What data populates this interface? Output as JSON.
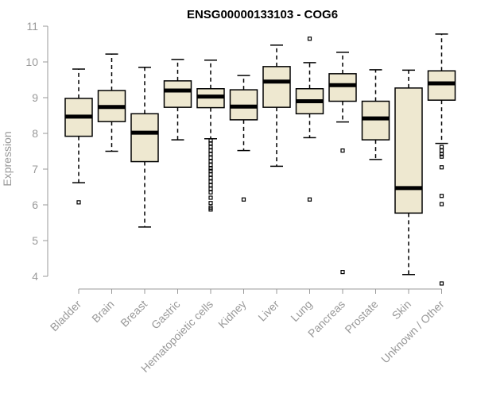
{
  "chart_data": {
    "type": "boxplot",
    "title": "ENSG00000133103 - COG6",
    "xlabel": "",
    "ylabel": "Expression",
    "ylim": [
      3.8,
      11.0
    ],
    "yticks": [
      4,
      5,
      6,
      7,
      8,
      9,
      10,
      11
    ],
    "grid": false,
    "box_color": "#EEE8D0",
    "categories": [
      "Bladder",
      "Brain",
      "Breast",
      "Gastric",
      "Hematopoietic cells",
      "Kidney",
      "Liver",
      "Lung",
      "Pancreas",
      "Prostate",
      "Skin",
      "Unknown / Other"
    ],
    "boxes": [
      {
        "q1": 7.92,
        "median": 8.47,
        "q3": 8.98,
        "whisker_low": 6.62,
        "whisker_high": 9.8,
        "outliers": [
          6.07
        ]
      },
      {
        "q1": 8.33,
        "median": 8.74,
        "q3": 9.2,
        "whisker_low": 7.5,
        "whisker_high": 10.22,
        "outliers": []
      },
      {
        "q1": 7.21,
        "median": 8.02,
        "q3": 8.55,
        "whisker_low": 5.38,
        "whisker_high": 9.85,
        "outliers": []
      },
      {
        "q1": 8.73,
        "median": 9.2,
        "q3": 9.47,
        "whisker_low": 7.82,
        "whisker_high": 10.07,
        "outliers": []
      },
      {
        "q1": 8.72,
        "median": 9.03,
        "q3": 9.25,
        "whisker_low": 7.85,
        "whisker_high": 10.05,
        "outliers": [
          7.8,
          7.72,
          7.62,
          7.52,
          7.42,
          7.32,
          7.22,
          7.12,
          7.02,
          6.95,
          6.85,
          6.75,
          6.65,
          6.55,
          6.45,
          6.35,
          6.2,
          6.05,
          5.92,
          5.87
        ]
      },
      {
        "q1": 8.38,
        "median": 8.75,
        "q3": 9.22,
        "whisker_low": 7.52,
        "whisker_high": 9.62,
        "outliers": [
          6.15
        ]
      },
      {
        "q1": 8.73,
        "median": 9.45,
        "q3": 9.87,
        "whisker_low": 7.08,
        "whisker_high": 10.47,
        "outliers": []
      },
      {
        "q1": 8.55,
        "median": 8.9,
        "q3": 9.25,
        "whisker_low": 7.88,
        "whisker_high": 9.98,
        "outliers": [
          10.65,
          6.15
        ]
      },
      {
        "q1": 8.9,
        "median": 9.35,
        "q3": 9.67,
        "whisker_low": 8.32,
        "whisker_high": 10.27,
        "outliers": [
          7.52,
          4.12
        ]
      },
      {
        "q1": 7.82,
        "median": 8.42,
        "q3": 8.9,
        "whisker_low": 7.27,
        "whisker_high": 9.78,
        "outliers": []
      },
      {
        "q1": 5.77,
        "median": 6.47,
        "q3": 9.27,
        "whisker_low": 4.05,
        "whisker_high": 9.77,
        "outliers": []
      },
      {
        "q1": 8.93,
        "median": 9.4,
        "q3": 9.75,
        "whisker_low": 7.72,
        "whisker_high": 10.78,
        "outliers": [
          7.62,
          7.52,
          7.42,
          7.35,
          7.05,
          6.25,
          6.02,
          3.8
        ]
      }
    ]
  }
}
